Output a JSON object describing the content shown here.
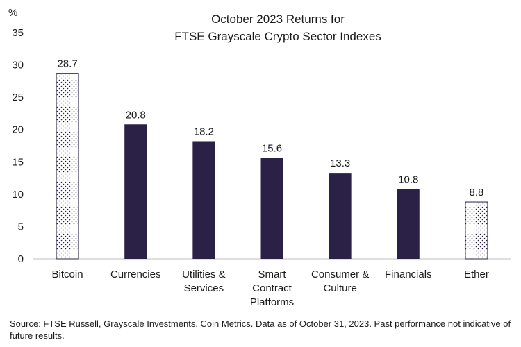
{
  "chart_data": {
    "type": "bar",
    "title_lines": [
      "October 2023 Returns for",
      "FTSE Grayscale Crypto Sector Indexes"
    ],
    "y_unit": "%",
    "ylim": [
      0,
      35
    ],
    "yticks": [
      0,
      5,
      10,
      15,
      20,
      25,
      30,
      35
    ],
    "grid": false,
    "categories": [
      [
        "Bitcoin"
      ],
      [
        "Currencies"
      ],
      [
        "Utilities &",
        "Services"
      ],
      [
        "Smart",
        "Contract",
        "Platforms"
      ],
      [
        "Consumer &",
        "Culture"
      ],
      [
        "Financials"
      ],
      [
        "Ether"
      ]
    ],
    "values": [
      28.7,
      20.8,
      18.2,
      15.6,
      13.3,
      10.8,
      8.8
    ],
    "value_labels": [
      "28.7",
      "20.8",
      "18.2",
      "15.6",
      "13.3",
      "10.8",
      "8.8"
    ],
    "bar_styles": [
      "dotted",
      "solid",
      "solid",
      "solid",
      "solid",
      "solid",
      "dotted"
    ],
    "colors": {
      "solid": "#2b2147",
      "dotted_outline": "#2b2147",
      "dots": "#2b2147"
    }
  },
  "source_note": "Source: FTSE Russell, Grayscale Investments, Coin Metrics. Data as of October 31, 2023. Past performance not indicative of future results."
}
